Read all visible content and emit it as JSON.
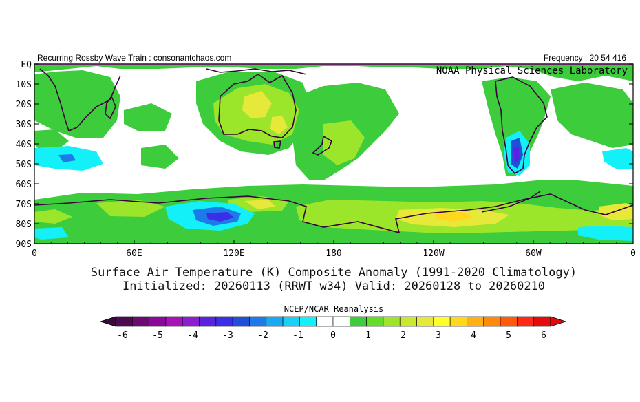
{
  "header": {
    "left": "Recurring Rossby Wave Train : consonantchaos.com",
    "right": "Frequency : 20 54 416",
    "lab": "NOAA Physical Sciences Laboratory"
  },
  "map": {
    "lat_labels": [
      "EQ",
      "10S",
      "20S",
      "30S",
      "40S",
      "50S",
      "60S",
      "70S",
      "80S",
      "90S"
    ],
    "lon_labels": [
      "0",
      "60E",
      "120E",
      "180",
      "120W",
      "60W",
      "0"
    ]
  },
  "title": {
    "line1": "Surface Air Temperature (K) Composite Anomaly (1991-2020 Climatology)",
    "line2": "Initialized: 20260113 (RRWT w34) Valid: 20260128 to 20260210"
  },
  "colorbar": {
    "source": "NCEP/NCAR Reanalysis",
    "tick_labels": [
      "-6",
      "-5",
      "-4",
      "-3",
      "-2",
      "-1",
      "0",
      "1",
      "2",
      "3",
      "4",
      "5",
      "6"
    ],
    "colors": [
      "#4b0a52",
      "#6a0a72",
      "#8a0a98",
      "#a812b8",
      "#8d1fd0",
      "#5a22e0",
      "#3a2ee8",
      "#2050d8",
      "#1e7ae8",
      "#1aa8f0",
      "#18d0f8",
      "#14f0f8",
      "#ffffff",
      "#ffffff",
      "#3ccc3c",
      "#64dc28",
      "#9be62a",
      "#c8e832",
      "#e6e83a",
      "#ffff28",
      "#ffd81e",
      "#ffb014",
      "#ff8a0a",
      "#ff5a0a",
      "#ff2a14",
      "#e60a0a"
    ]
  }
}
